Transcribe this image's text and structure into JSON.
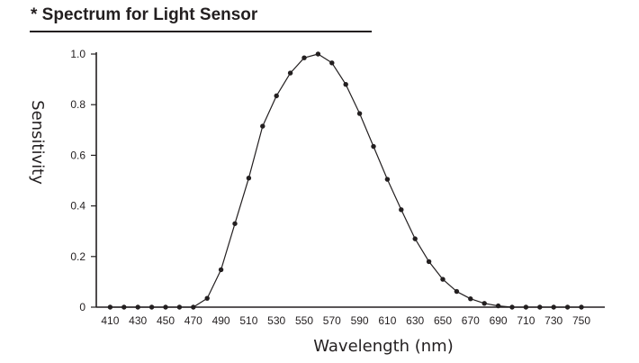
{
  "chart_data": {
    "type": "line",
    "title": "* Spectrum for Light Sensor",
    "xlabel": "Wavelength (nm)",
    "ylabel": "Sensitivity",
    "xlim": [
      400,
      760
    ],
    "ylim": [
      0,
      1.0
    ],
    "x_ticks": [
      410,
      430,
      450,
      470,
      490,
      510,
      530,
      550,
      570,
      590,
      610,
      630,
      650,
      670,
      690,
      710,
      730,
      750
    ],
    "y_ticks": [
      {
        "value": 0,
        "label": "0"
      },
      {
        "value": 0.2,
        "label": "0.2"
      },
      {
        "value": 0.4,
        "label": "0.4"
      },
      {
        "value": 0.6,
        "label": "0.6"
      },
      {
        "value": 0.8,
        "label": "0.8"
      },
      {
        "value": 1.0,
        "label": "1.0"
      }
    ],
    "grid": false,
    "series": [
      {
        "x": [
          410,
          420,
          430,
          440,
          450,
          460,
          470,
          480,
          490,
          500,
          510,
          520,
          530,
          540,
          550,
          560,
          570,
          580,
          590,
          600,
          610,
          620,
          630,
          640,
          650,
          660,
          670,
          680,
          690,
          700,
          710,
          720,
          730,
          740,
          750
        ],
        "y": [
          0,
          0,
          0,
          0,
          0,
          0,
          0,
          0.035,
          0.148,
          0.33,
          0.51,
          0.715,
          0.835,
          0.925,
          0.985,
          1.0,
          0.965,
          0.88,
          0.765,
          0.635,
          0.505,
          0.385,
          0.27,
          0.18,
          0.11,
          0.062,
          0.033,
          0.015,
          0.005,
          0,
          0,
          0,
          0,
          0,
          0
        ]
      }
    ],
    "colors": {
      "line": "#231f20",
      "marker": "#231f20",
      "axis": "#231f20"
    }
  }
}
